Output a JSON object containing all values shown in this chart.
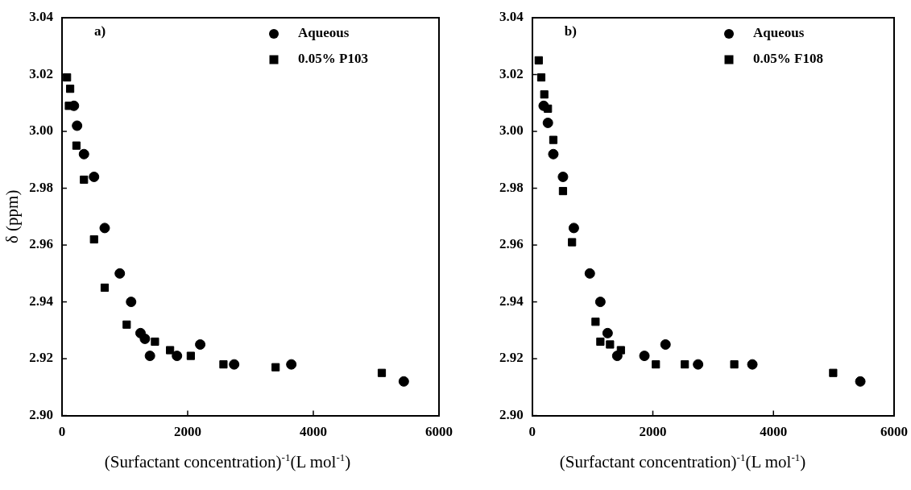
{
  "chart_data": [
    {
      "type": "scatter",
      "annotations": [
        "a)"
      ],
      "ylabel": "δ (ppm)",
      "xlabel": "(Surfactant concentration)$^{-1}$(L mol$^{-1}$)",
      "xlim": [
        0,
        6000
      ],
      "xticks": [
        0,
        2000,
        4000,
        6000
      ],
      "ylim": [
        2.9,
        3.04
      ],
      "yticks": [
        {
          "value": 2.9,
          "label": "2.90"
        },
        {
          "value": 2.92,
          "label": "2.92"
        },
        {
          "value": 2.94,
          "label": "2.94"
        },
        {
          "value": 2.96,
          "label": "2.96"
        },
        {
          "value": 2.98,
          "label": "2.98"
        },
        {
          "value": 3.0,
          "label": "3.00"
        },
        {
          "value": 3.02,
          "label": "3.02"
        },
        {
          "value": 3.04,
          "label": "3.04"
        }
      ],
      "legend": "top right",
      "grid": false,
      "series": [
        {
          "name": "Aqueous",
          "color": "#000000",
          "marker": "circle",
          "x": [
            190,
            240,
            350,
            510,
            680,
            920,
            1100,
            1250,
            1320,
            1400,
            1830,
            2200,
            2740,
            3650,
            5440
          ],
          "values": [
            3.009,
            3.002,
            2.992,
            2.984,
            2.966,
            2.95,
            2.94,
            2.929,
            2.927,
            2.921,
            2.921,
            2.925,
            2.918,
            2.918,
            2.912
          ]
        },
        {
          "name": "0.05% P103",
          "color": "#000000",
          "marker": "square",
          "x": [
            80,
            130,
            110,
            230,
            350,
            510,
            680,
            1030,
            1480,
            1720,
            2050,
            2570,
            3400,
            5090
          ],
          "values": [
            3.019,
            3.015,
            3.009,
            2.995,
            2.983,
            2.962,
            2.945,
            2.932,
            2.926,
            2.923,
            2.921,
            2.918,
            2.917,
            2.915
          ]
        }
      ]
    },
    {
      "type": "scatter",
      "annotations": [
        "b)"
      ],
      "xlabel": "(Surfactant concentration)$^{-1}$(L mol$^{-1}$)",
      "xlim": [
        0,
        6000
      ],
      "xticks": [
        0,
        2000,
        4000,
        6000
      ],
      "ylim": [
        2.9,
        3.04
      ],
      "yticks": [
        {
          "value": 2.9,
          "label": "2.90"
        },
        {
          "value": 2.92,
          "label": "2.92"
        },
        {
          "value": 2.94,
          "label": "2.94"
        },
        {
          "value": 2.96,
          "label": "2.96"
        },
        {
          "value": 2.98,
          "label": "2.98"
        },
        {
          "value": 3.0,
          "label": "3.00"
        },
        {
          "value": 3.02,
          "label": "3.02"
        },
        {
          "value": 3.04,
          "label": "3.04"
        }
      ],
      "legend": "top right",
      "grid": false,
      "series": [
        {
          "name": "Aqueous",
          "color": "#000000",
          "marker": "circle",
          "x": [
            190,
            260,
            350,
            510,
            690,
            955,
            1130,
            1250,
            1410,
            1860,
            2210,
            2750,
            3650,
            5440
          ],
          "values": [
            3.009,
            3.003,
            2.992,
            2.984,
            2.966,
            2.95,
            2.94,
            2.929,
            2.921,
            2.921,
            2.925,
            2.918,
            2.918,
            2.912
          ]
        },
        {
          "name": "0.05% F108",
          "color": "#000000",
          "marker": "square",
          "x": [
            108,
            150,
            200,
            260,
            350,
            510,
            660,
            1050,
            1130,
            1290,
            1470,
            2050,
            2530,
            3350,
            4990
          ],
          "values": [
            3.025,
            3.019,
            3.013,
            3.008,
            2.997,
            2.979,
            2.961,
            2.933,
            2.926,
            2.925,
            2.923,
            2.918,
            2.918,
            2.918,
            2.915
          ]
        }
      ]
    }
  ]
}
